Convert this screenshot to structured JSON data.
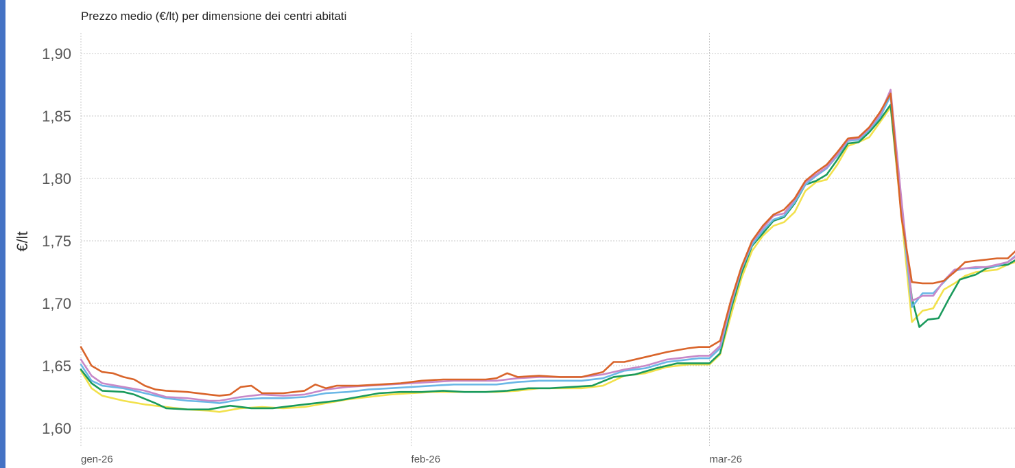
{
  "chart_data": {
    "type": "line",
    "title": "Prezzo medio (€/lt) per dimensione dei centri abitati",
    "ylabel": "€/lt",
    "xlabel": "",
    "ylim": [
      1.6,
      1.9
    ],
    "yticks": [
      1.6,
      1.65,
      1.7,
      1.75,
      1.8,
      1.85,
      1.9
    ],
    "ytick_labels": [
      "1,60",
      "1,65",
      "1,70",
      "1,75",
      "1,80",
      "1,85",
      "1,90"
    ],
    "xticks": [
      0,
      31,
      59
    ],
    "xtick_labels": [
      "gen-26",
      "feb-26",
      "mar-26"
    ],
    "xlim": [
      0,
      88
    ],
    "grid": true,
    "legend": "none",
    "series": [
      {
        "color": "#f2e14c",
        "points": [
          [
            0,
            1.646
          ],
          [
            1,
            1.632
          ],
          [
            2,
            1.626
          ],
          [
            4,
            1.622
          ],
          [
            6,
            1.619
          ],
          [
            8,
            1.617
          ],
          [
            10,
            1.615
          ],
          [
            12,
            1.614
          ],
          [
            13,
            1.613
          ],
          [
            15,
            1.616
          ],
          [
            17,
            1.617
          ],
          [
            19,
            1.616
          ],
          [
            21,
            1.617
          ],
          [
            23,
            1.62
          ],
          [
            25,
            1.623
          ],
          [
            27,
            1.625
          ],
          [
            29,
            1.627
          ],
          [
            31,
            1.628
          ],
          [
            33,
            1.629
          ],
          [
            35,
            1.629
          ],
          [
            37,
            1.629
          ],
          [
            39,
            1.629
          ],
          [
            41,
            1.63
          ],
          [
            43,
            1.632
          ],
          [
            45,
            1.632
          ],
          [
            47,
            1.632
          ],
          [
            49,
            1.634
          ],
          [
            51,
            1.642
          ],
          [
            53,
            1.644
          ],
          [
            55,
            1.649
          ],
          [
            57,
            1.651
          ],
          [
            58,
            1.651
          ],
          [
            59,
            1.651
          ],
          [
            60,
            1.659
          ],
          [
            61,
            1.69
          ],
          [
            62,
            1.72
          ],
          [
            63,
            1.742
          ],
          [
            64,
            1.754
          ],
          [
            65,
            1.762
          ],
          [
            66,
            1.765
          ],
          [
            67,
            1.773
          ],
          [
            68,
            1.79
          ],
          [
            69,
            1.797
          ],
          [
            70,
            1.799
          ],
          [
            71,
            1.811
          ],
          [
            72,
            1.826
          ],
          [
            73,
            1.829
          ],
          [
            74,
            1.833
          ],
          [
            75,
            1.845
          ],
          [
            76,
            1.857
          ],
          [
            77,
            1.772
          ],
          [
            78,
            1.685
          ],
          [
            79,
            1.694
          ],
          [
            80,
            1.696
          ],
          [
            81,
            1.711
          ],
          [
            82,
            1.716
          ],
          [
            83,
            1.722
          ],
          [
            84,
            1.725
          ],
          [
            85,
            1.726
          ],
          [
            86,
            1.727
          ],
          [
            87,
            1.731
          ],
          [
            88,
            1.734
          ]
        ]
      },
      {
        "color": "#1a9a5c",
        "points": [
          [
            0,
            1.647
          ],
          [
            1,
            1.636
          ],
          [
            2,
            1.63
          ],
          [
            4,
            1.629
          ],
          [
            5,
            1.627
          ],
          [
            7,
            1.62
          ],
          [
            8,
            1.616
          ],
          [
            10,
            1.615
          ],
          [
            12,
            1.615
          ],
          [
            14,
            1.618
          ],
          [
            16,
            1.616
          ],
          [
            18,
            1.616
          ],
          [
            20,
            1.618
          ],
          [
            22,
            1.62
          ],
          [
            24,
            1.622
          ],
          [
            26,
            1.625
          ],
          [
            28,
            1.628
          ],
          [
            30,
            1.629
          ],
          [
            32,
            1.629
          ],
          [
            34,
            1.63
          ],
          [
            36,
            1.629
          ],
          [
            38,
            1.629
          ],
          [
            40,
            1.63
          ],
          [
            42,
            1.632
          ],
          [
            44,
            1.632
          ],
          [
            46,
            1.633
          ],
          [
            48,
            1.634
          ],
          [
            50,
            1.641
          ],
          [
            52,
            1.643
          ],
          [
            54,
            1.648
          ],
          [
            56,
            1.652
          ],
          [
            58,
            1.652
          ],
          [
            59,
            1.652
          ],
          [
            60,
            1.66
          ],
          [
            61,
            1.695
          ],
          [
            62,
            1.724
          ],
          [
            63,
            1.746
          ],
          [
            64,
            1.756
          ],
          [
            65,
            1.766
          ],
          [
            66,
            1.769
          ],
          [
            67,
            1.78
          ],
          [
            68,
            1.795
          ],
          [
            69,
            1.798
          ],
          [
            70,
            1.803
          ],
          [
            71,
            1.815
          ],
          [
            72,
            1.828
          ],
          [
            73,
            1.829
          ],
          [
            74,
            1.837
          ],
          [
            75,
            1.847
          ],
          [
            76,
            1.859
          ],
          [
            77,
            1.775
          ],
          [
            78,
            1.704
          ],
          [
            78.7,
            1.681
          ],
          [
            79.5,
            1.687
          ],
          [
            80.5,
            1.688
          ],
          [
            81.5,
            1.704
          ],
          [
            82.5,
            1.719
          ],
          [
            84,
            1.723
          ],
          [
            85,
            1.728
          ],
          [
            86,
            1.73
          ],
          [
            87,
            1.731
          ],
          [
            88,
            1.736
          ]
        ]
      },
      {
        "color": "#6ab7e6",
        "points": [
          [
            0,
            1.651
          ],
          [
            1,
            1.638
          ],
          [
            2,
            1.634
          ],
          [
            4,
            1.632
          ],
          [
            6,
            1.628
          ],
          [
            8,
            1.624
          ],
          [
            10,
            1.622
          ],
          [
            12,
            1.621
          ],
          [
            13,
            1.62
          ],
          [
            15,
            1.623
          ],
          [
            17,
            1.624
          ],
          [
            19,
            1.624
          ],
          [
            21,
            1.625
          ],
          [
            23,
            1.628
          ],
          [
            25,
            1.629
          ],
          [
            27,
            1.631
          ],
          [
            29,
            1.632
          ],
          [
            31,
            1.633
          ],
          [
            33,
            1.634
          ],
          [
            35,
            1.635
          ],
          [
            37,
            1.635
          ],
          [
            39,
            1.635
          ],
          [
            41,
            1.637
          ],
          [
            43,
            1.638
          ],
          [
            45,
            1.638
          ],
          [
            47,
            1.638
          ],
          [
            49,
            1.64
          ],
          [
            51,
            1.646
          ],
          [
            53,
            1.648
          ],
          [
            55,
            1.653
          ],
          [
            57,
            1.655
          ],
          [
            58,
            1.656
          ],
          [
            59,
            1.656
          ],
          [
            60,
            1.664
          ],
          [
            61,
            1.698
          ],
          [
            62,
            1.727
          ],
          [
            63,
            1.747
          ],
          [
            64,
            1.758
          ],
          [
            65,
            1.767
          ],
          [
            66,
            1.77
          ],
          [
            67,
            1.781
          ],
          [
            68,
            1.795
          ],
          [
            69,
            1.802
          ],
          [
            70,
            1.808
          ],
          [
            71,
            1.818
          ],
          [
            72,
            1.83
          ],
          [
            73,
            1.831
          ],
          [
            74,
            1.839
          ],
          [
            75,
            1.849
          ],
          [
            76,
            1.866
          ],
          [
            77,
            1.778
          ],
          [
            78,
            1.697
          ],
          [
            79,
            1.708
          ],
          [
            80,
            1.708
          ],
          [
            81,
            1.717
          ],
          [
            82,
            1.726
          ],
          [
            83,
            1.728
          ],
          [
            84,
            1.728
          ],
          [
            85,
            1.729
          ],
          [
            86,
            1.73
          ],
          [
            87,
            1.733
          ],
          [
            88,
            1.74
          ]
        ]
      },
      {
        "color": "#c788c8",
        "points": [
          [
            0,
            1.655
          ],
          [
            1,
            1.642
          ],
          [
            2,
            1.636
          ],
          [
            4,
            1.633
          ],
          [
            6,
            1.63
          ],
          [
            8,
            1.625
          ],
          [
            10,
            1.624
          ],
          [
            12,
            1.622
          ],
          [
            13,
            1.622
          ],
          [
            15,
            1.625
          ],
          [
            17,
            1.627
          ],
          [
            19,
            1.626
          ],
          [
            21,
            1.627
          ],
          [
            23,
            1.631
          ],
          [
            25,
            1.633
          ],
          [
            27,
            1.634
          ],
          [
            29,
            1.635
          ],
          [
            31,
            1.636
          ],
          [
            33,
            1.637
          ],
          [
            35,
            1.638
          ],
          [
            37,
            1.638
          ],
          [
            39,
            1.638
          ],
          [
            41,
            1.64
          ],
          [
            43,
            1.641
          ],
          [
            45,
            1.641
          ],
          [
            47,
            1.641
          ],
          [
            49,
            1.643
          ],
          [
            51,
            1.647
          ],
          [
            53,
            1.65
          ],
          [
            55,
            1.655
          ],
          [
            57,
            1.657
          ],
          [
            58,
            1.658
          ],
          [
            59,
            1.658
          ],
          [
            60,
            1.666
          ],
          [
            61,
            1.7
          ],
          [
            62,
            1.728
          ],
          [
            63,
            1.749
          ],
          [
            64,
            1.76
          ],
          [
            65,
            1.77
          ],
          [
            66,
            1.772
          ],
          [
            67,
            1.783
          ],
          [
            68,
            1.797
          ],
          [
            69,
            1.803
          ],
          [
            70,
            1.809
          ],
          [
            71,
            1.819
          ],
          [
            72,
            1.831
          ],
          [
            73,
            1.832
          ],
          [
            74,
            1.84
          ],
          [
            75,
            1.851
          ],
          [
            76,
            1.871
          ],
          [
            77,
            1.785
          ],
          [
            78,
            1.702
          ],
          [
            79,
            1.706
          ],
          [
            80,
            1.706
          ],
          [
            81,
            1.718
          ],
          [
            82,
            1.727
          ],
          [
            83,
            1.728
          ],
          [
            84,
            1.729
          ],
          [
            85,
            1.729
          ],
          [
            86,
            1.731
          ],
          [
            87,
            1.733
          ],
          [
            88,
            1.739
          ]
        ]
      },
      {
        "color": "#d9642a",
        "points": [
          [
            0,
            1.665
          ],
          [
            1,
            1.65
          ],
          [
            2,
            1.645
          ],
          [
            3,
            1.644
          ],
          [
            4,
            1.641
          ],
          [
            5,
            1.639
          ],
          [
            6,
            1.634
          ],
          [
            7,
            1.631
          ],
          [
            8,
            1.63
          ],
          [
            10,
            1.629
          ],
          [
            12,
            1.627
          ],
          [
            13,
            1.626
          ],
          [
            14,
            1.627
          ],
          [
            15,
            1.633
          ],
          [
            16,
            1.634
          ],
          [
            17,
            1.628
          ],
          [
            19,
            1.628
          ],
          [
            20,
            1.629
          ],
          [
            21,
            1.63
          ],
          [
            22,
            1.635
          ],
          [
            23,
            1.632
          ],
          [
            24,
            1.634
          ],
          [
            26,
            1.634
          ],
          [
            28,
            1.635
          ],
          [
            30,
            1.636
          ],
          [
            32,
            1.638
          ],
          [
            34,
            1.639
          ],
          [
            36,
            1.639
          ],
          [
            38,
            1.639
          ],
          [
            39,
            1.64
          ],
          [
            40,
            1.644
          ],
          [
            41,
            1.641
          ],
          [
            43,
            1.642
          ],
          [
            45,
            1.641
          ],
          [
            47,
            1.641
          ],
          [
            49,
            1.645
          ],
          [
            50,
            1.653
          ],
          [
            51,
            1.653
          ],
          [
            53,
            1.657
          ],
          [
            55,
            1.661
          ],
          [
            57,
            1.664
          ],
          [
            58,
            1.665
          ],
          [
            59,
            1.665
          ],
          [
            60,
            1.67
          ],
          [
            61,
            1.702
          ],
          [
            62,
            1.729
          ],
          [
            63,
            1.75
          ],
          [
            64,
            1.762
          ],
          [
            65,
            1.771
          ],
          [
            66,
            1.775
          ],
          [
            67,
            1.784
          ],
          [
            68,
            1.798
          ],
          [
            69,
            1.805
          ],
          [
            70,
            1.811
          ],
          [
            71,
            1.821
          ],
          [
            72,
            1.832
          ],
          [
            73,
            1.833
          ],
          [
            74,
            1.841
          ],
          [
            75,
            1.853
          ],
          [
            76,
            1.868
          ],
          [
            77,
            1.77
          ],
          [
            78,
            1.717
          ],
          [
            79,
            1.716
          ],
          [
            80,
            1.716
          ],
          [
            81,
            1.718
          ],
          [
            82,
            1.725
          ],
          [
            83,
            1.733
          ],
          [
            84,
            1.734
          ],
          [
            85,
            1.735
          ],
          [
            86,
            1.736
          ],
          [
            87,
            1.736
          ],
          [
            88,
            1.744
          ]
        ]
      }
    ]
  }
}
